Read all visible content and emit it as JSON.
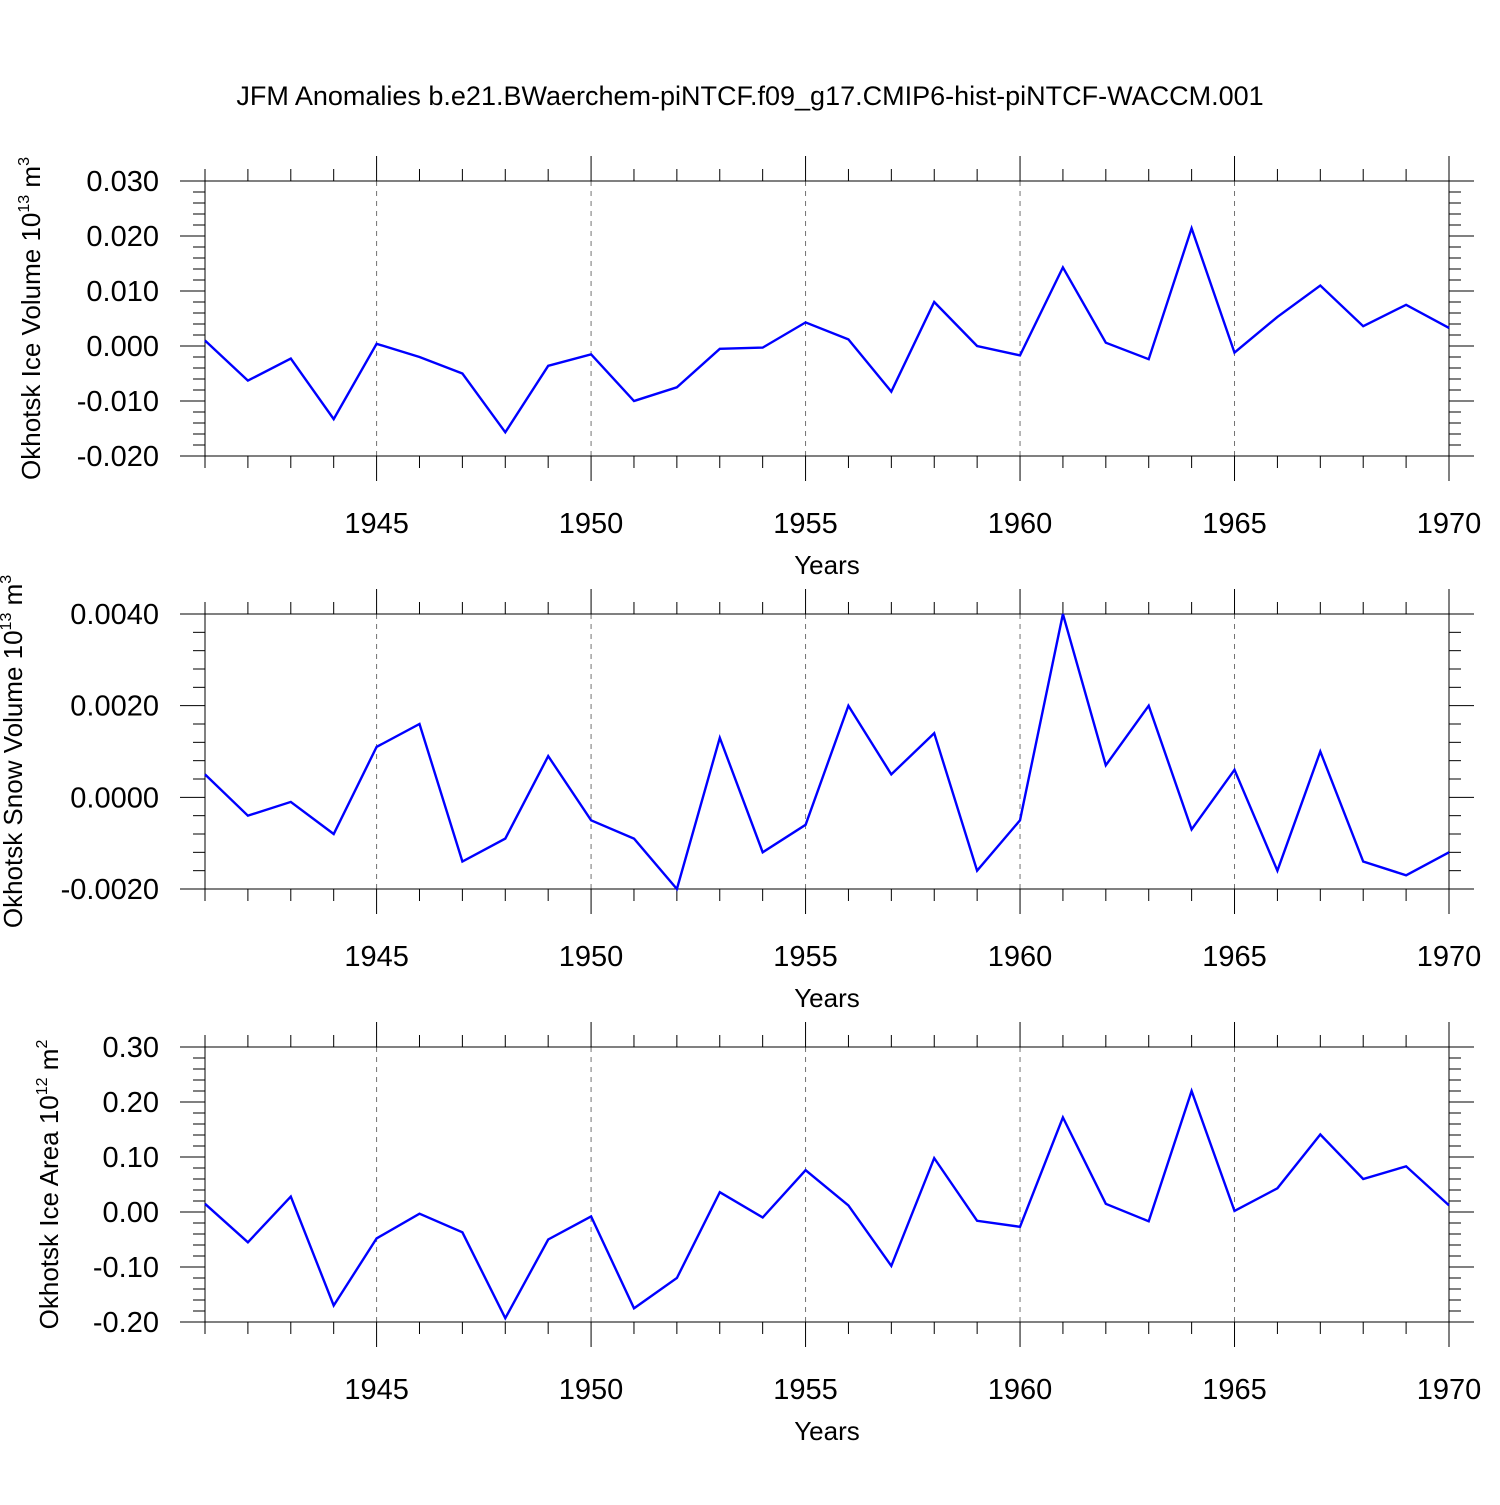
{
  "title": "JFM Anomalies b.e21.BWaerchem-piNTCF.f09_g17.CMIP6-hist-piNTCF-WACCM.001",
  "colors": {
    "series": "#0000ff",
    "axes": "#000000"
  },
  "chart_data": [
    {
      "type": "line",
      "xlabel": "Years",
      "ylabel_main": "Okhotsk Ice Volume 10",
      "ylabel_exp": "13",
      "ylabel_unit": "m",
      "ylabel_unit_exp": "3",
      "xlim": [
        1941,
        1970
      ],
      "ylim": [
        -0.02,
        0.03
      ],
      "yticks": [
        -0.02,
        -0.01,
        0.0,
        0.01,
        0.02,
        0.03
      ],
      "ytick_labels": [
        "-0.020",
        "-0.010",
        "0.000",
        "0.010",
        "0.020",
        "0.030"
      ],
      "xticks": [
        1945,
        1950,
        1955,
        1960,
        1965,
        1970
      ],
      "xtick_labels": [
        "1945",
        "1950",
        "1955",
        "1960",
        "1965",
        "1970"
      ],
      "grid": "dashed vertical at labeled years",
      "x": [
        1941,
        1942,
        1943,
        1944,
        1945,
        1946,
        1947,
        1948,
        1949,
        1950,
        1951,
        1952,
        1953,
        1954,
        1955,
        1956,
        1957,
        1958,
        1959,
        1960,
        1961,
        1962,
        1963,
        1964,
        1965,
        1966,
        1967,
        1968,
        1969,
        1970
      ],
      "y": [
        0.001,
        -0.0063,
        -0.0023,
        -0.0133,
        0.0004,
        -0.002,
        -0.005,
        -0.0157,
        -0.0036,
        -0.0015,
        -0.01,
        -0.0075,
        -0.0005,
        -0.0003,
        0.0043,
        0.0012,
        -0.0083,
        0.008,
        0.0,
        -0.0017,
        0.0143,
        0.0006,
        -0.0024,
        0.0214,
        -0.0012,
        0.0053,
        0.011,
        0.0036,
        0.0075,
        0.0033
      ]
    },
    {
      "type": "line",
      "xlabel": "Years",
      "ylabel_main": "Okhotsk Snow Volume 10",
      "ylabel_exp": "13",
      "ylabel_unit": "m",
      "ylabel_unit_exp": "3",
      "xlim": [
        1941,
        1970
      ],
      "ylim": [
        -0.002,
        0.004
      ],
      "yticks": [
        -0.002,
        0.0,
        0.002,
        0.004
      ],
      "ytick_labels": [
        "-0.0020",
        "0.0000",
        "0.0020",
        "0.0040"
      ],
      "xticks": [
        1945,
        1950,
        1955,
        1960,
        1965,
        1970
      ],
      "xtick_labels": [
        "1945",
        "1950",
        "1955",
        "1960",
        "1965",
        "1970"
      ],
      "grid": "dashed vertical at labeled years",
      "x": [
        1941,
        1942,
        1943,
        1944,
        1945,
        1946,
        1947,
        1948,
        1949,
        1950,
        1951,
        1952,
        1953,
        1954,
        1955,
        1956,
        1957,
        1958,
        1959,
        1960,
        1961,
        1962,
        1963,
        1964,
        1965,
        1966,
        1967,
        1968,
        1969,
        1970
      ],
      "y": [
        0.0005,
        -0.0004,
        -0.0001,
        -0.0008,
        0.0011,
        0.0016,
        -0.0014,
        -0.0009,
        0.0009,
        -0.0005,
        -0.0009,
        -0.002,
        0.0013,
        -0.0012,
        -0.0006,
        0.002,
        0.0005,
        0.0014,
        -0.0016,
        -0.0005,
        0.004,
        0.0007,
        0.002,
        -0.0007,
        0.0006,
        -0.0016,
        0.001,
        -0.0014,
        -0.0017,
        -0.0012
      ]
    },
    {
      "type": "line",
      "xlabel": "Years",
      "ylabel_main": "Okhotsk Ice Area 10",
      "ylabel_exp": "12",
      "ylabel_unit": "m",
      "ylabel_unit_exp": "2",
      "xlim": [
        1941,
        1970
      ],
      "ylim": [
        -0.2,
        0.3
      ],
      "yticks": [
        -0.2,
        -0.1,
        0.0,
        0.1,
        0.2,
        0.3
      ],
      "ytick_labels": [
        "-0.20",
        "-0.10",
        "0.00",
        "0.10",
        "0.20",
        "0.30"
      ],
      "xticks": [
        1945,
        1950,
        1955,
        1960,
        1965,
        1970
      ],
      "xtick_labels": [
        "1945",
        "1950",
        "1955",
        "1960",
        "1965",
        "1970"
      ],
      "grid": "dashed vertical at labeled years",
      "x": [
        1941,
        1942,
        1943,
        1944,
        1945,
        1946,
        1947,
        1948,
        1949,
        1950,
        1951,
        1952,
        1953,
        1954,
        1955,
        1956,
        1957,
        1958,
        1959,
        1960,
        1961,
        1962,
        1963,
        1964,
        1965,
        1966,
        1967,
        1968,
        1969,
        1970
      ],
      "y": [
        0.015,
        -0.055,
        0.028,
        -0.17,
        -0.048,
        -0.003,
        -0.037,
        -0.193,
        -0.05,
        -0.008,
        -0.175,
        -0.12,
        0.036,
        -0.01,
        0.076,
        0.012,
        -0.098,
        0.098,
        -0.016,
        -0.027,
        0.172,
        0.015,
        -0.017,
        0.22,
        0.002,
        0.043,
        0.141,
        0.06,
        0.083,
        0.012
      ]
    }
  ]
}
